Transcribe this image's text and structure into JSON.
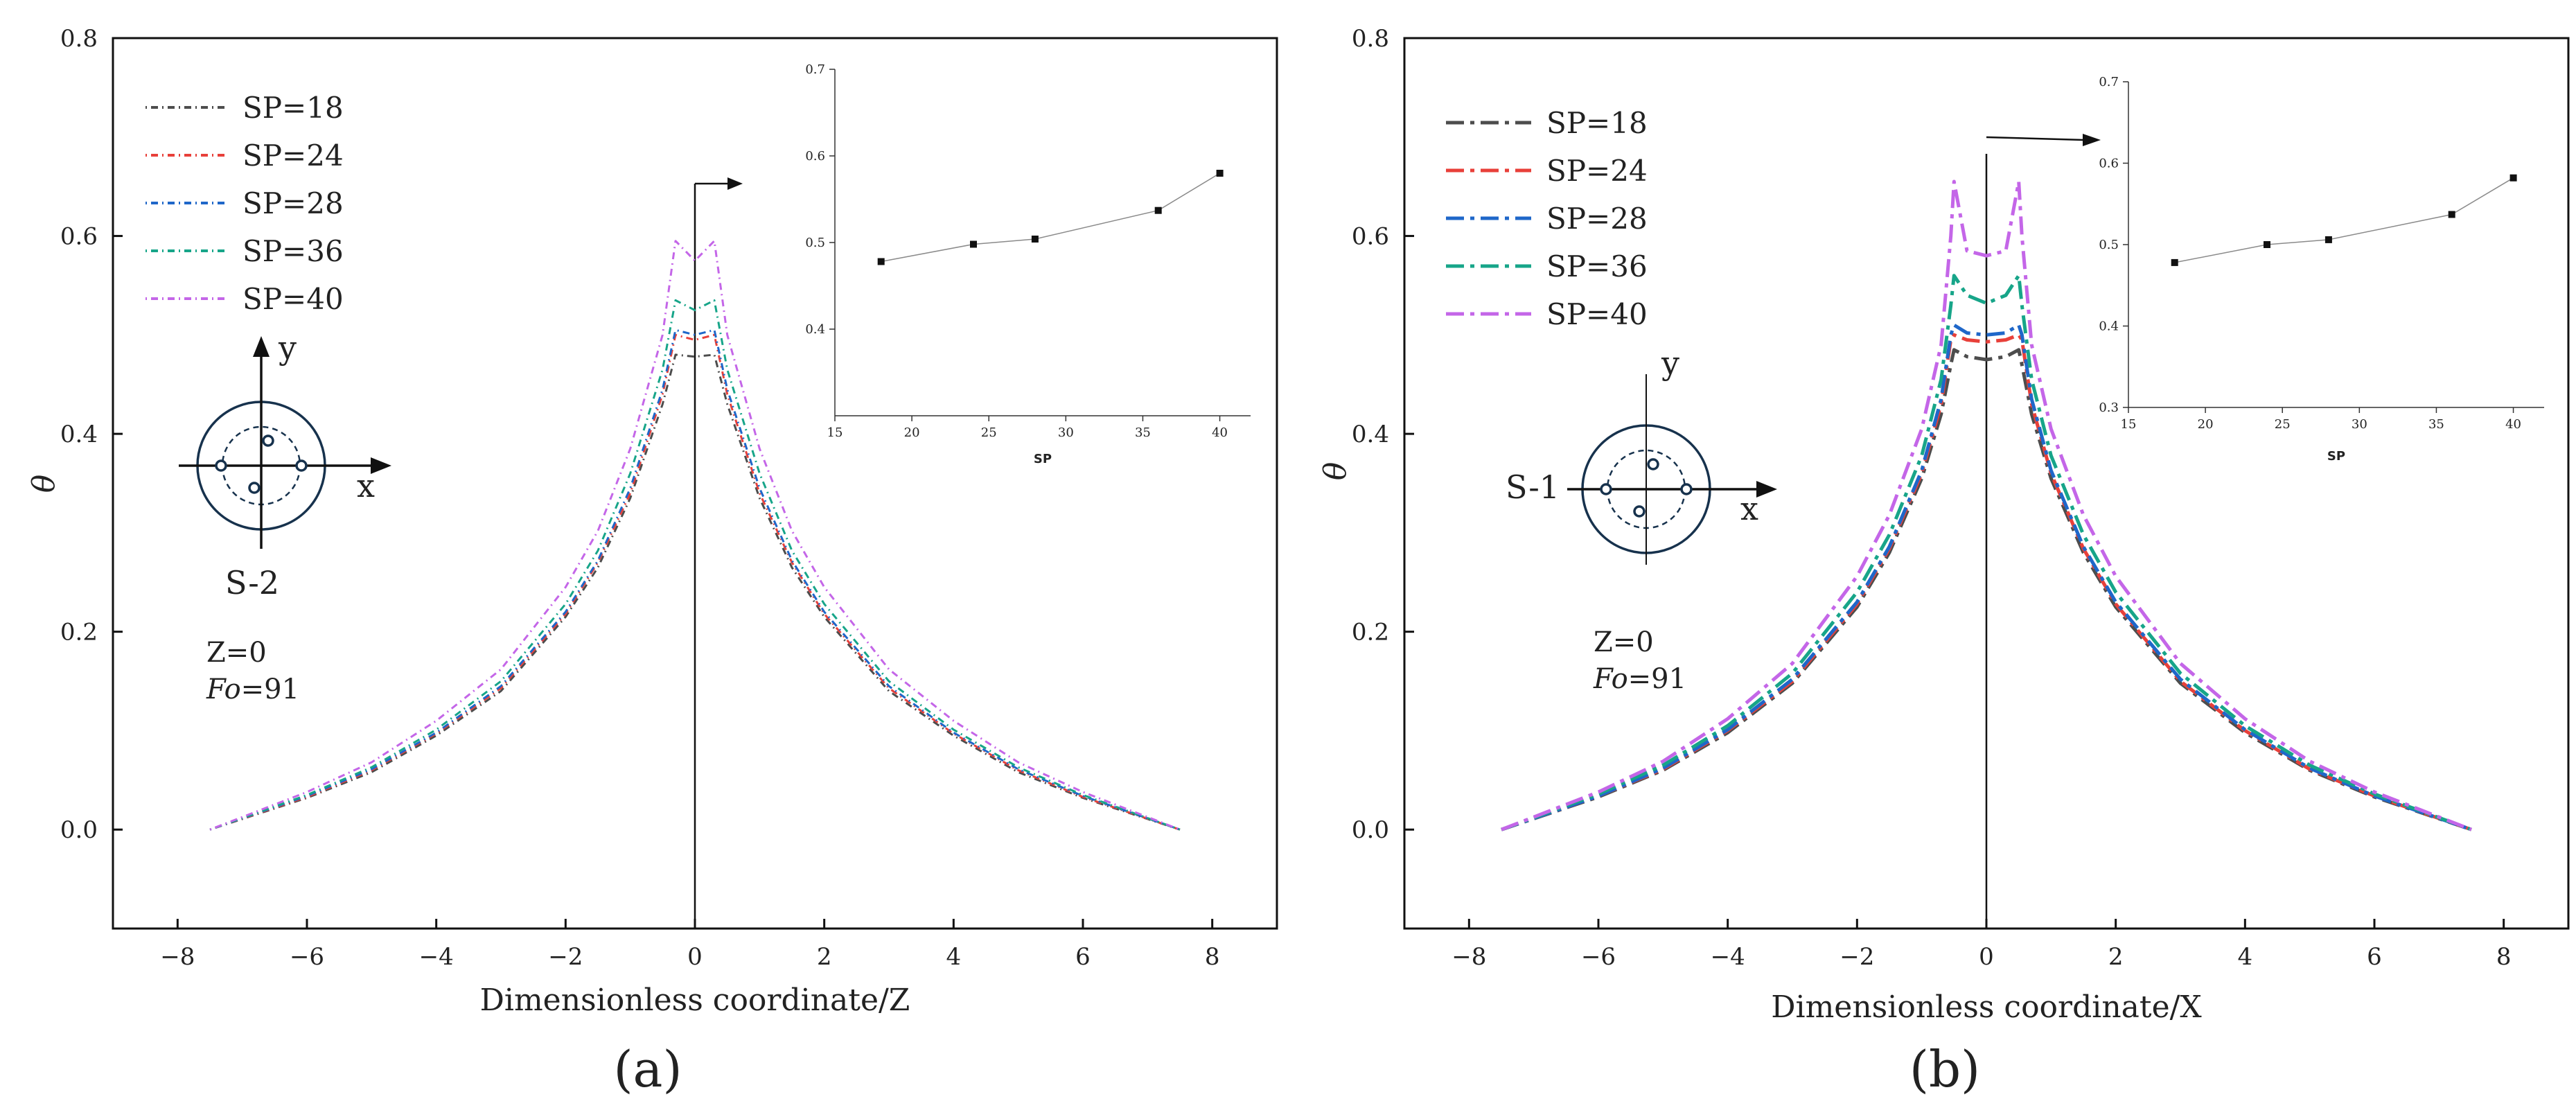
{
  "figure": {
    "panel_labels": [
      "(a)",
      "(b)"
    ]
  },
  "colors": {
    "SP=18": "#4d4d4d",
    "SP=24": "#e8403a",
    "SP=28": "#1f67c9",
    "SP=36": "#17a589",
    "SP=40": "#c466e8"
  },
  "chart_data": [
    {
      "type": "line",
      "panel": "(a)",
      "title": "",
      "xlabel": "Dimensionless coordinate/Z",
      "ylabel": "θ",
      "xlim": [
        -9,
        9
      ],
      "ylim": [
        -0.1,
        0.8
      ],
      "xticks": [
        -8,
        -6,
        -4,
        -2,
        0,
        2,
        4,
        6,
        8
      ],
      "yticks": [
        0.0,
        0.2,
        0.4,
        0.6,
        0.8
      ],
      "x": [
        -7.5,
        -6,
        -5,
        -4,
        -3,
        -2,
        -1.5,
        -1,
        -0.5,
        -0.3,
        0,
        0.3,
        0.5,
        1,
        1.5,
        2,
        3,
        4,
        5,
        6,
        7.5
      ],
      "series": [
        {
          "name": "SP=18",
          "values": [
            0.0,
            0.032,
            0.058,
            0.095,
            0.14,
            0.215,
            0.265,
            0.335,
            0.43,
            0.48,
            0.478,
            0.48,
            0.43,
            0.335,
            0.265,
            0.215,
            0.14,
            0.095,
            0.058,
            0.032,
            0.0
          ]
        },
        {
          "name": "SP=24",
          "values": [
            0.0,
            0.033,
            0.06,
            0.097,
            0.143,
            0.218,
            0.27,
            0.34,
            0.44,
            0.5,
            0.495,
            0.5,
            0.44,
            0.34,
            0.27,
            0.218,
            0.143,
            0.097,
            0.06,
            0.033,
            0.0
          ]
        },
        {
          "name": "SP=28",
          "values": [
            0.0,
            0.034,
            0.061,
            0.098,
            0.145,
            0.22,
            0.272,
            0.345,
            0.445,
            0.505,
            0.5,
            0.505,
            0.445,
            0.345,
            0.272,
            0.22,
            0.145,
            0.098,
            0.061,
            0.034,
            0.0
          ]
        },
        {
          "name": "SP=36",
          "values": [
            0.0,
            0.035,
            0.063,
            0.101,
            0.15,
            0.228,
            0.282,
            0.36,
            0.465,
            0.535,
            0.525,
            0.535,
            0.465,
            0.36,
            0.282,
            0.228,
            0.15,
            0.101,
            0.063,
            0.035,
            0.0
          ]
        },
        {
          "name": "SP=40",
          "values": [
            0.0,
            0.038,
            0.068,
            0.11,
            0.162,
            0.245,
            0.302,
            0.385,
            0.5,
            0.595,
            0.575,
            0.595,
            0.5,
            0.385,
            0.302,
            0.245,
            0.162,
            0.11,
            0.068,
            0.038,
            0.0
          ]
        }
      ],
      "legend_entries": [
        "SP=18",
        "SP=24",
        "SP=28",
        "SP=36",
        "SP=40"
      ],
      "annotations": {
        "condition_z": "Z=0",
        "fo_italic": "Fo",
        "fo_value": "=91",
        "sketch_label": "S-2",
        "axis_x": "x",
        "axis_y": "y"
      },
      "inset": {
        "type": "line",
        "xlabel": "SP",
        "ylabel": "",
        "xlim": [
          15,
          42
        ],
        "ylim": [
          0.3,
          0.7
        ],
        "xticks": [
          15,
          20,
          25,
          30,
          35,
          40
        ],
        "yticks": [
          0.4,
          0.5,
          0.6,
          0.7
        ],
        "x": [
          18,
          24,
          28,
          36,
          40
        ],
        "values": [
          0.478,
          0.498,
          0.504,
          0.537,
          0.58
        ]
      }
    },
    {
      "type": "line",
      "panel": "(b)",
      "title": "",
      "xlabel": "Dimensionless coordinate/X",
      "ylabel": "θ",
      "xlim": [
        -9,
        9
      ],
      "ylim": [
        -0.1,
        0.8
      ],
      "xticks": [
        -8,
        -6,
        -4,
        -2,
        0,
        2,
        4,
        6,
        8
      ],
      "yticks": [
        0.0,
        0.2,
        0.4,
        0.6,
        0.8
      ],
      "x": [
        -7.5,
        -6,
        -5,
        -4,
        -3,
        -2,
        -1.5,
        -1,
        -0.7,
        -0.55,
        -0.5,
        -0.3,
        0,
        0.3,
        0.5,
        0.55,
        0.7,
        1,
        1.5,
        2,
        3,
        4,
        5,
        6,
        7.5
      ],
      "series": [
        {
          "name": "SP=18",
          "values": [
            0.0,
            0.033,
            0.06,
            0.098,
            0.148,
            0.225,
            0.28,
            0.355,
            0.42,
            0.47,
            0.485,
            0.478,
            0.475,
            0.478,
            0.485,
            0.47,
            0.42,
            0.355,
            0.28,
            0.225,
            0.148,
            0.098,
            0.06,
            0.033,
            0.0
          ]
        },
        {
          "name": "SP=24",
          "values": [
            0.0,
            0.034,
            0.061,
            0.1,
            0.15,
            0.228,
            0.284,
            0.36,
            0.43,
            0.495,
            0.5,
            0.495,
            0.493,
            0.495,
            0.5,
            0.495,
            0.43,
            0.36,
            0.284,
            0.228,
            0.15,
            0.1,
            0.061,
            0.034,
            0.0
          ]
        },
        {
          "name": "SP=28",
          "values": [
            0.0,
            0.034,
            0.062,
            0.101,
            0.152,
            0.23,
            0.286,
            0.363,
            0.435,
            0.5,
            0.51,
            0.502,
            0.5,
            0.502,
            0.51,
            0.5,
            0.435,
            0.363,
            0.286,
            0.23,
            0.152,
            0.101,
            0.062,
            0.034,
            0.0
          ]
        },
        {
          "name": "SP=36",
          "values": [
            0.0,
            0.036,
            0.065,
            0.105,
            0.158,
            0.24,
            0.298,
            0.378,
            0.455,
            0.53,
            0.56,
            0.54,
            0.532,
            0.54,
            0.56,
            0.53,
            0.455,
            0.378,
            0.298,
            0.24,
            0.158,
            0.105,
            0.065,
            0.036,
            0.0
          ]
        },
        {
          "name": "SP=40",
          "values": [
            0.0,
            0.038,
            0.069,
            0.112,
            0.168,
            0.256,
            0.318,
            0.405,
            0.49,
            0.6,
            0.655,
            0.585,
            0.58,
            0.585,
            0.655,
            0.6,
            0.49,
            0.405,
            0.318,
            0.256,
            0.168,
            0.112,
            0.069,
            0.038,
            0.0
          ]
        }
      ],
      "legend_entries": [
        "SP=18",
        "SP=24",
        "SP=28",
        "SP=36",
        "SP=40"
      ],
      "annotations": {
        "condition_z": "Z=0",
        "fo_italic": "Fo",
        "fo_value": "=91",
        "sketch_label": "S-1",
        "axis_x": "x",
        "axis_y": "y"
      },
      "inset": {
        "type": "line",
        "xlabel": "SP",
        "ylabel": "",
        "xlim": [
          15,
          42
        ],
        "ylim": [
          0.3,
          0.7
        ],
        "xticks": [
          15,
          20,
          25,
          30,
          35,
          40
        ],
        "yticks": [
          0.3,
          0.4,
          0.5,
          0.6,
          0.7
        ],
        "x": [
          18,
          24,
          28,
          36,
          40
        ],
        "values": [
          0.478,
          0.5,
          0.506,
          0.537,
          0.582
        ]
      }
    }
  ]
}
